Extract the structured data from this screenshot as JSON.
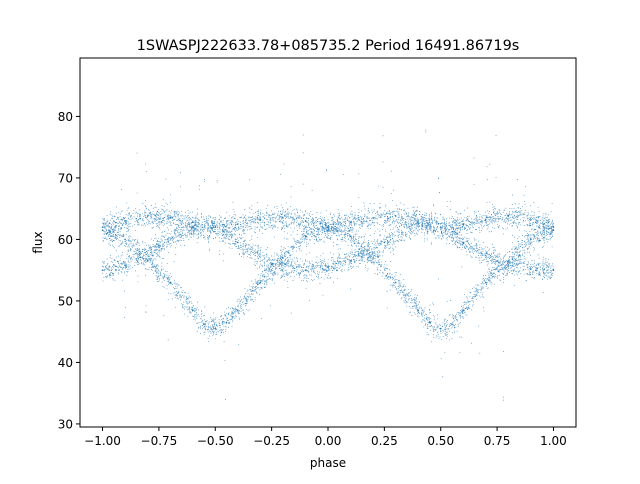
{
  "chart_data": {
    "type": "scatter",
    "title": "1SWASPJ222633.78+085735.2 Period 16491.86719s",
    "xlabel": "phase",
    "ylabel": "flux",
    "xlim": [
      -1.1,
      1.1
    ],
    "ylim": [
      29.5,
      89.5
    ],
    "xticks": [
      -1.0,
      -0.75,
      -0.5,
      -0.25,
      0.0,
      0.25,
      0.5,
      0.75,
      1.0
    ],
    "xtick_labels": [
      "−1.00",
      "−0.75",
      "−0.50",
      "−0.25",
      "0.00",
      "0.25",
      "0.50",
      "0.75",
      "1.00"
    ],
    "yticks": [
      30,
      40,
      50,
      60,
      70,
      80
    ],
    "ytick_labels": [
      "30",
      "40",
      "50",
      "60",
      "70",
      "80"
    ],
    "grid": false,
    "marker_color": "#1f77b4",
    "series": [
      {
        "x": [
          -1.0,
          -0.9,
          -0.8,
          -0.7,
          -0.6,
          -0.55,
          -0.5,
          -0.45,
          -0.4,
          -0.3,
          -0.2,
          -0.1,
          0.0,
          0.1,
          0.2,
          0.3,
          0.4,
          0.45,
          0.5,
          0.55,
          0.6,
          0.7,
          0.8,
          0.9,
          1.0
        ],
        "y": [
          61.5,
          60.0,
          56.5,
          53.0,
          48.5,
          46.2,
          45.5,
          46.5,
          48.5,
          53.0,
          57.0,
          60.5,
          62.0,
          60.5,
          57.0,
          53.0,
          48.5,
          46.5,
          45.5,
          46.2,
          48.5,
          53.0,
          56.5,
          60.0,
          61.5
        ]
      },
      {
        "x": [
          -1.0,
          -0.9,
          -0.75,
          -0.6,
          -0.5,
          -0.4,
          -0.25,
          -0.1,
          0.0,
          0.1,
          0.25,
          0.4,
          0.5,
          0.6,
          0.75,
          0.9,
          1.0
        ],
        "y": [
          55.0,
          55.8,
          59.0,
          62.0,
          62.0,
          59.5,
          56.0,
          55.0,
          55.5,
          56.5,
          59.5,
          62.5,
          62.0,
          59.5,
          56.5,
          55.2,
          55.0
        ]
      },
      {
        "x": [
          -1.0,
          -0.9,
          -0.8,
          -0.7,
          -0.6,
          -0.5,
          -0.4,
          -0.3,
          -0.2,
          -0.1,
          0.0,
          0.1,
          0.2,
          0.3,
          0.4,
          0.5,
          0.6,
          0.7,
          0.8,
          0.9,
          1.0
        ],
        "y": [
          62.0,
          63.0,
          63.8,
          63.5,
          62.8,
          62.0,
          62.5,
          63.2,
          63.5,
          63.0,
          62.0,
          62.8,
          63.5,
          63.8,
          63.0,
          62.0,
          62.5,
          63.2,
          63.8,
          63.2,
          62.0
        ]
      }
    ]
  }
}
